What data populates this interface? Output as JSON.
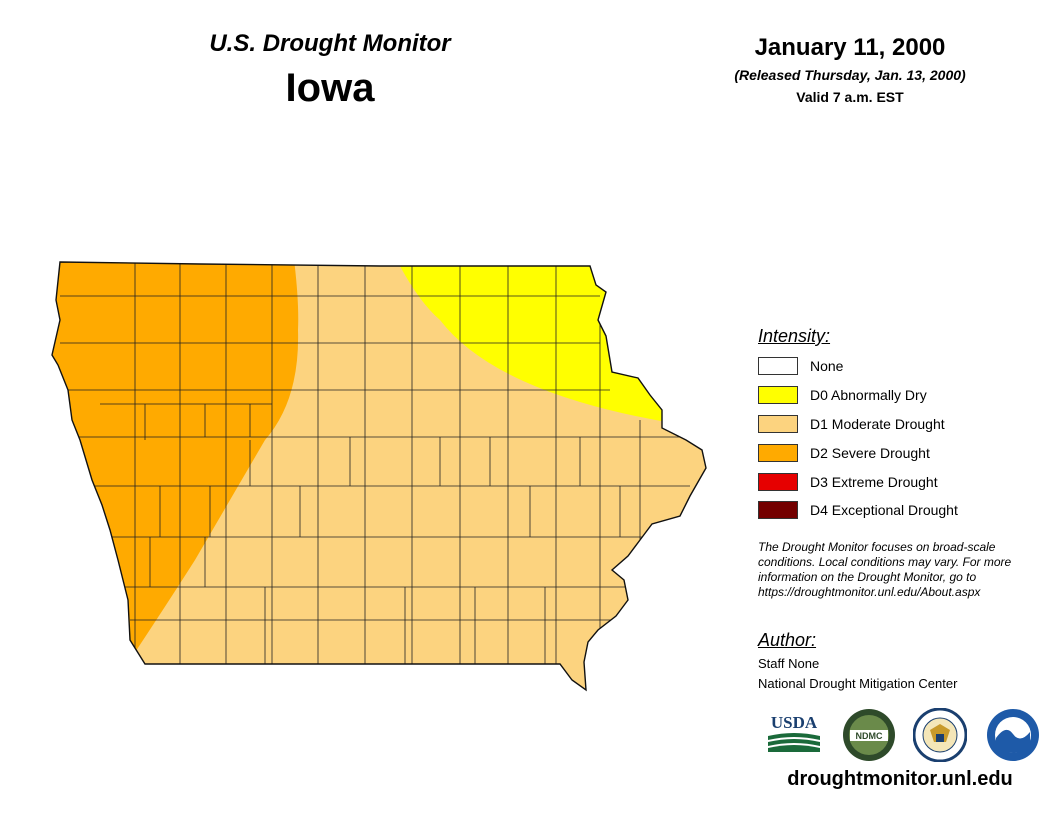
{
  "header": {
    "title": "U.S. Drought Monitor",
    "state": "Iowa",
    "date": "January 11, 2000",
    "released": "(Released Thursday, Jan. 13, 2000)",
    "valid": "Valid 7 a.m. EST"
  },
  "legend": {
    "title": "Intensity:",
    "items": [
      {
        "label": "None",
        "color": "#ffffff"
      },
      {
        "label": "D0 Abnormally Dry",
        "color": "#ffff00"
      },
      {
        "label": "D1 Moderate Drought",
        "color": "#fcd37f"
      },
      {
        "label": "D2 Severe Drought",
        "color": "#ffaa00"
      },
      {
        "label": "D3 Extreme Drought",
        "color": "#e60000"
      },
      {
        "label": "D4 Exceptional Drought",
        "color": "#730000"
      }
    ]
  },
  "note": "The Drought Monitor focuses on broad-scale conditions. Local conditions may vary. For more information on the Drought Monitor, go to https://droughtmonitor.unl.edu/About.aspx",
  "author": {
    "heading": "Author:",
    "name": "Staff None",
    "organization": "National Drought Mitigation Center"
  },
  "logos": {
    "usda": "USDA",
    "ndmc": "NDMC",
    "doc": "DOC",
    "noaa": "NOAA"
  },
  "footer": {
    "website": "droughtmonitor.unl.edu"
  }
}
